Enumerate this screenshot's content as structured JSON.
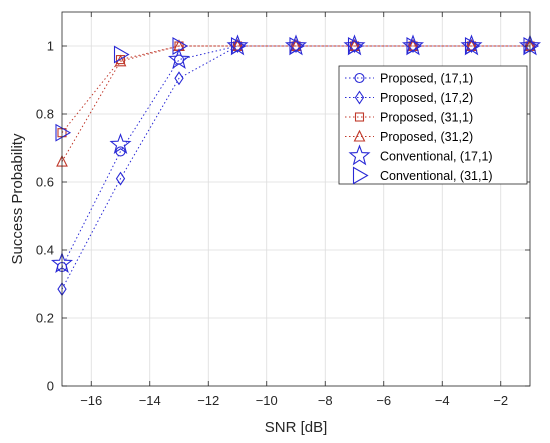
{
  "chart_data": {
    "type": "line",
    "xlabel": "SNR [dB]",
    "ylabel": "Success Probability",
    "xlim": [
      -17,
      -1
    ],
    "ylim": [
      0,
      1.1
    ],
    "x_ticks": [
      -16,
      -14,
      -12,
      -10,
      -8,
      -6,
      -4,
      -2
    ],
    "y_ticks": [
      0,
      0.2,
      0.4,
      0.6,
      0.8,
      1
    ],
    "grid": true,
    "legend_position": "top-right",
    "x": [
      -17,
      -15,
      -13,
      -11,
      -9,
      -7,
      -5,
      -3,
      -1
    ],
    "series": [
      {
        "name": "Proposed, (17,1)",
        "marker": "circle",
        "color": "#2a2ad6",
        "line": "dotted",
        "values": [
          0.35,
          0.69,
          0.96,
          1,
          1,
          1,
          1,
          1,
          1
        ]
      },
      {
        "name": "Proposed, (17,2)",
        "marker": "diamond",
        "color": "#2a2ad6",
        "line": "dotted",
        "values": [
          0.285,
          0.61,
          0.905,
          1,
          1,
          1,
          1,
          1,
          1
        ]
      },
      {
        "name": "Proposed, (31,1)",
        "marker": "square",
        "color": "#c0392b",
        "line": "dotted",
        "values": [
          0.745,
          0.96,
          1,
          1,
          1,
          1,
          1,
          1,
          1
        ]
      },
      {
        "name": "Proposed, (31,2)",
        "marker": "triangle-up",
        "color": "#c0392b",
        "line": "dotted",
        "values": [
          0.66,
          0.955,
          1,
          1,
          1,
          1,
          1,
          1,
          1
        ]
      },
      {
        "name": "Conventional, (17,1)",
        "marker": "star",
        "color": "#2a2ad6",
        "line": "none",
        "values": [
          0.36,
          0.71,
          0.96,
          1,
          1,
          1,
          1,
          1,
          1
        ]
      },
      {
        "name": "Conventional, (31,1)",
        "marker": "triangle-right",
        "color": "#2a2ad6",
        "line": "none",
        "values": [
          0.745,
          0.975,
          1,
          1,
          1,
          1,
          1,
          1,
          1
        ]
      }
    ]
  }
}
